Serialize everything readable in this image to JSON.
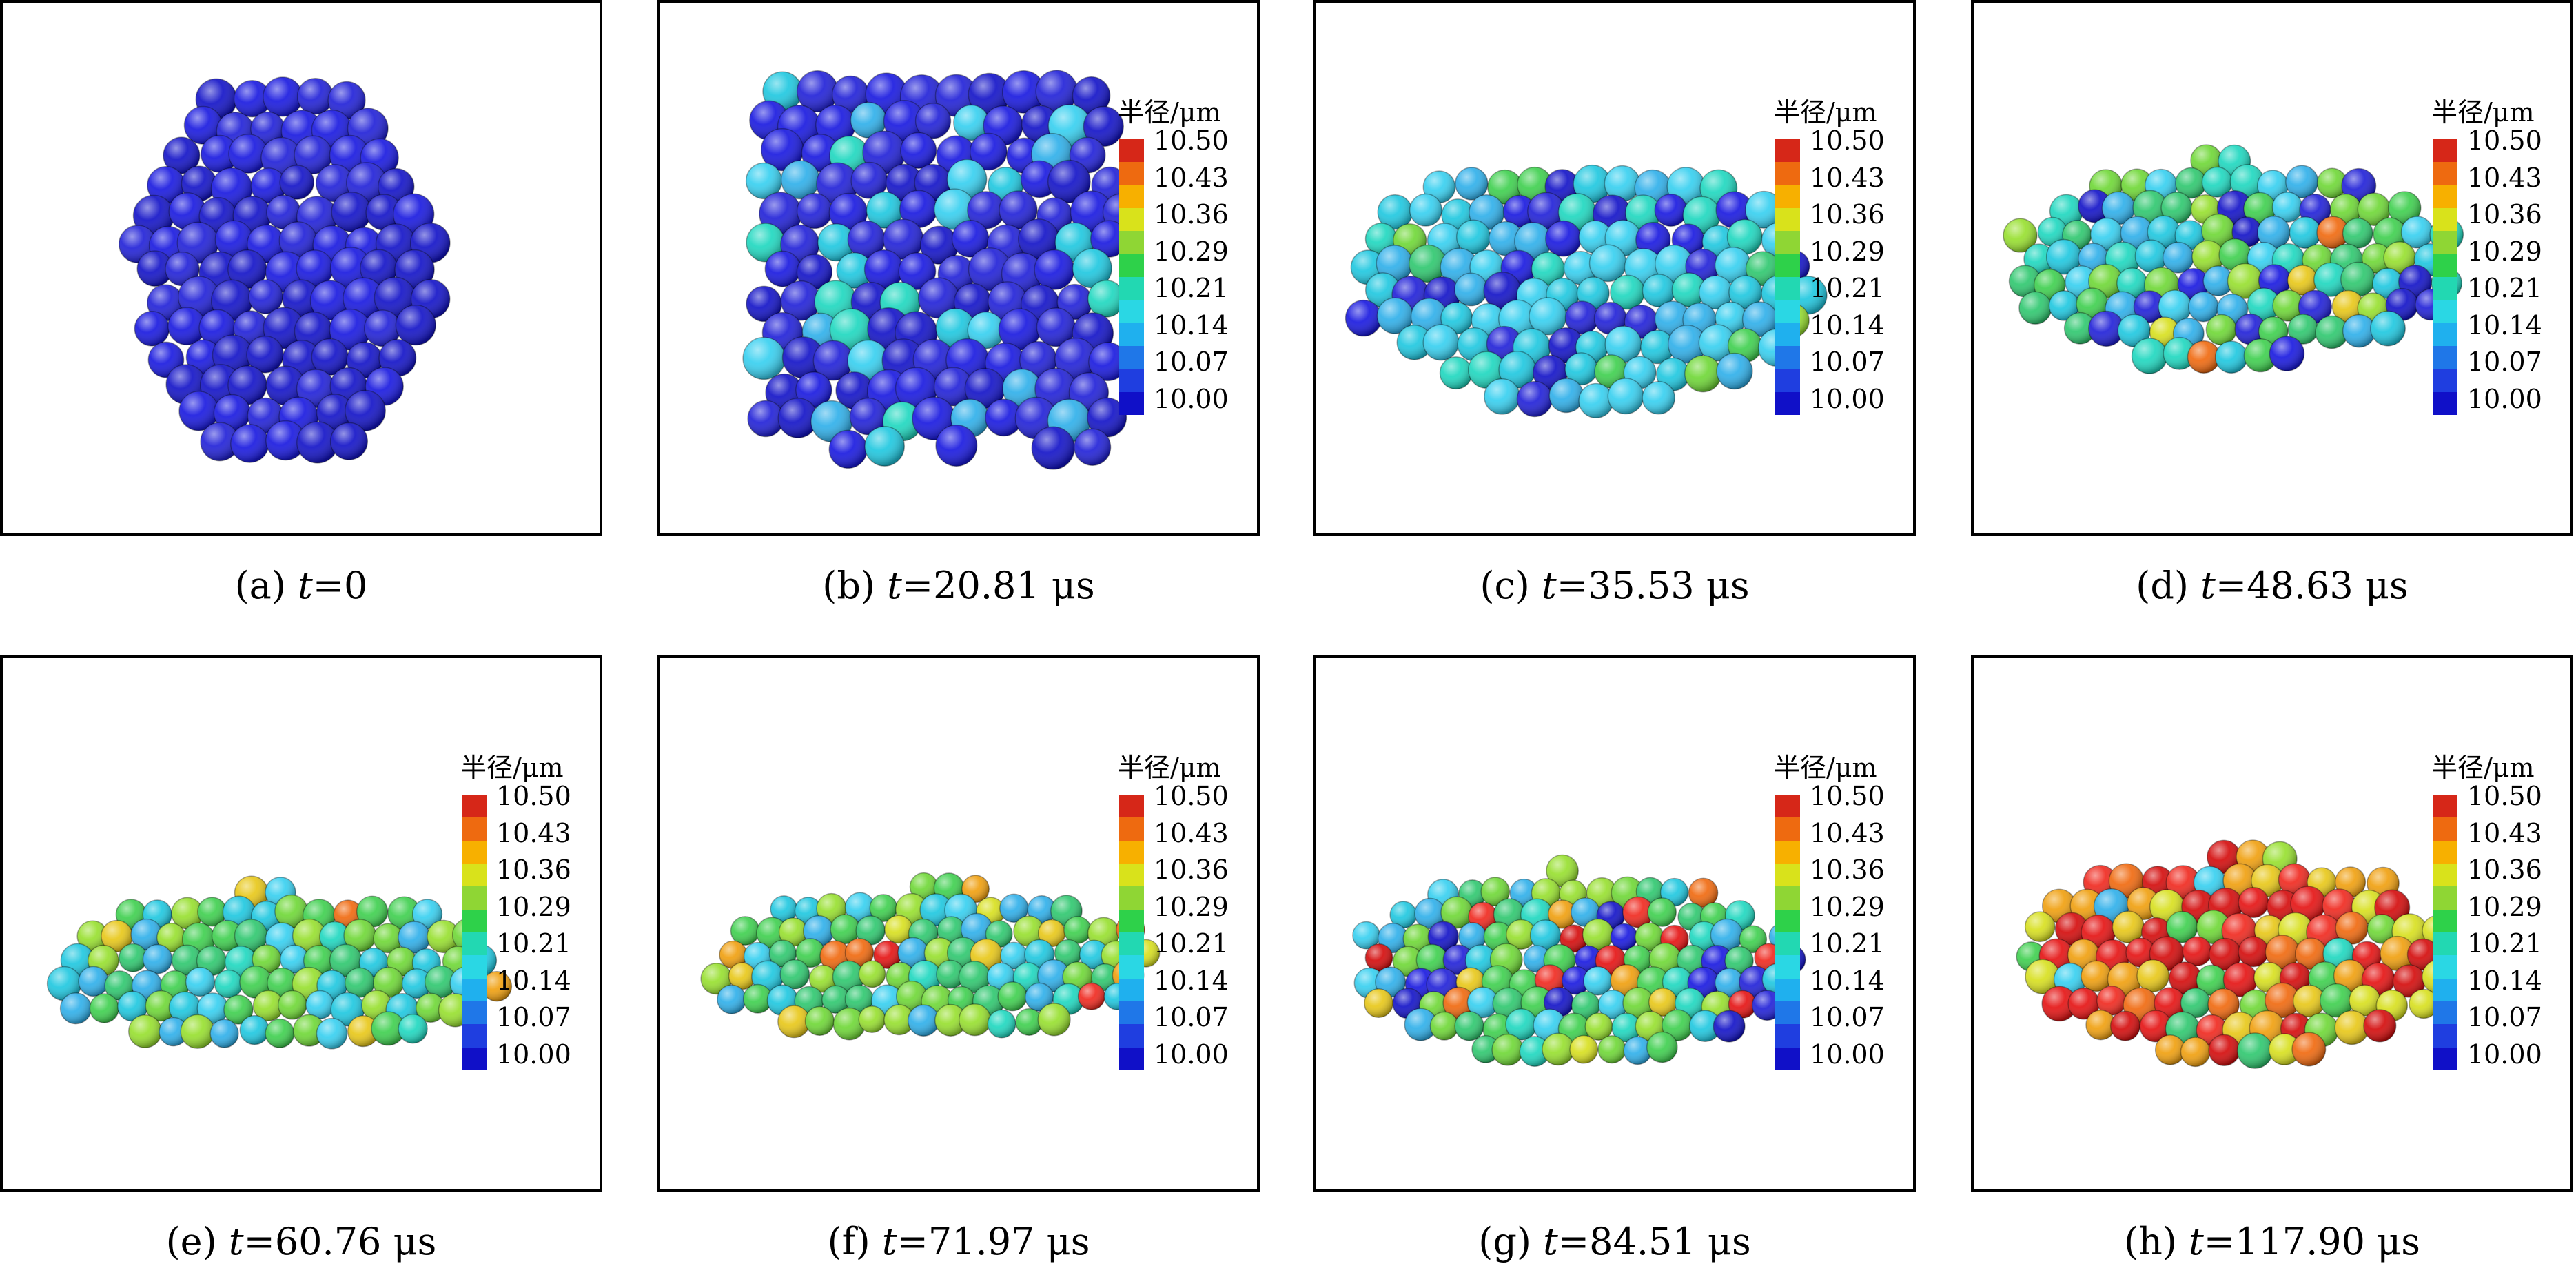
{
  "colorbar": {
    "title": "半径/μm",
    "ticks": [
      "10.50",
      "10.43",
      "10.36",
      "10.29",
      "10.21",
      "10.14",
      "10.07",
      "10.00"
    ],
    "colors": [
      "#d62718",
      "#ee6a10",
      "#f7b000",
      "#d9e21b",
      "#8fd634",
      "#2ed14a",
      "#22d8b2",
      "#2ad7e4",
      "#1fb0ee",
      "#1f77e8",
      "#1f3ee0",
      "#1010c8"
    ]
  },
  "panels": [
    {
      "label": "(a)",
      "var": "t",
      "eq": "=",
      "value": "0",
      "unit": "",
      "has_colorbar": false,
      "mix": [
        0,
        0,
        1.0,
        0,
        0
      ]
    },
    {
      "label": "(b)",
      "var": "t",
      "eq": "=",
      "value": "20.81",
      "unit": "μs",
      "has_colorbar": true,
      "mix": [
        0,
        0,
        0.75,
        0.25,
        0
      ]
    },
    {
      "label": "(c)",
      "var": "t",
      "eq": "=",
      "value": "35.53",
      "unit": "μs",
      "has_colorbar": true,
      "mix": [
        0,
        0,
        0.2,
        0.7,
        0.1
      ]
    },
    {
      "label": "(d)",
      "var": "t",
      "eq": "=",
      "value": "48.63",
      "unit": "μs",
      "has_colorbar": true,
      "mix": [
        0,
        0.05,
        0.1,
        0.45,
        0.4
      ]
    },
    {
      "label": "(e)",
      "var": "t",
      "eq": "=",
      "value": "60.76",
      "unit": "μs",
      "has_colorbar": true,
      "mix": [
        0,
        0.1,
        0,
        0.35,
        0.55
      ]
    },
    {
      "label": "(f)",
      "var": "t",
      "eq": "=",
      "value": "71.97",
      "unit": "μs",
      "has_colorbar": true,
      "mix": [
        0.02,
        0.2,
        0,
        0.23,
        0.55
      ]
    },
    {
      "label": "(g)",
      "var": "t",
      "eq": "=",
      "value": "84.51",
      "unit": "μs",
      "has_colorbar": true,
      "mix": [
        0.1,
        0.1,
        0.15,
        0.3,
        0.35
      ]
    },
    {
      "label": "(h)",
      "var": "t",
      "eq": "=",
      "value": "117.90",
      "unit": "μs",
      "has_colorbar": true,
      "mix": [
        0.45,
        0.4,
        0,
        0.05,
        0.1
      ]
    }
  ]
}
